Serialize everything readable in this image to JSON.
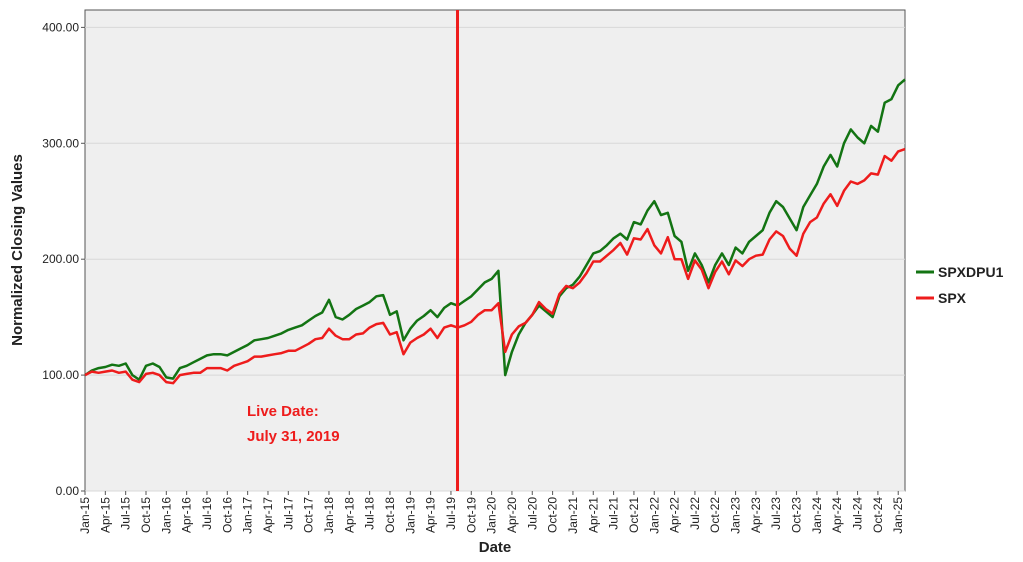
{
  "chart_data": {
    "type": "line",
    "xlabel": "Date",
    "ylabel": "Normalized Closing Values",
    "x": [
      "2015-01",
      "2015-02",
      "2015-03",
      "2015-04",
      "2015-05",
      "2015-06",
      "2015-07",
      "2015-08",
      "2015-09",
      "2015-10",
      "2015-11",
      "2015-12",
      "2016-01",
      "2016-02",
      "2016-03",
      "2016-04",
      "2016-05",
      "2016-06",
      "2016-07",
      "2016-08",
      "2016-09",
      "2016-10",
      "2016-11",
      "2016-12",
      "2017-01",
      "2017-02",
      "2017-03",
      "2017-04",
      "2017-05",
      "2017-06",
      "2017-07",
      "2017-08",
      "2017-09",
      "2017-10",
      "2017-11",
      "2017-12",
      "2018-01",
      "2018-02",
      "2018-03",
      "2018-04",
      "2018-05",
      "2018-06",
      "2018-07",
      "2018-08",
      "2018-09",
      "2018-10",
      "2018-11",
      "2018-12",
      "2019-01",
      "2019-02",
      "2019-03",
      "2019-04",
      "2019-05",
      "2019-06",
      "2019-07",
      "2019-08",
      "2019-09",
      "2019-10",
      "2019-11",
      "2019-12",
      "2020-01",
      "2020-02",
      "2020-03",
      "2020-04",
      "2020-05",
      "2020-06",
      "2020-07",
      "2020-08",
      "2020-09",
      "2020-10",
      "2020-11",
      "2020-12",
      "2021-01",
      "2021-02",
      "2021-03",
      "2021-04",
      "2021-05",
      "2021-06",
      "2021-07",
      "2021-08",
      "2021-09",
      "2021-10",
      "2021-11",
      "2021-12",
      "2022-01",
      "2022-02",
      "2022-03",
      "2022-04",
      "2022-05",
      "2022-06",
      "2022-07",
      "2022-08",
      "2022-09",
      "2022-10",
      "2022-11",
      "2022-12",
      "2023-01",
      "2023-02",
      "2023-03",
      "2023-04",
      "2023-05",
      "2023-06",
      "2023-07",
      "2023-08",
      "2023-09",
      "2023-10",
      "2023-11",
      "2023-12",
      "2024-01",
      "2024-02",
      "2024-03",
      "2024-04",
      "2024-05",
      "2024-06",
      "2024-07",
      "2024-08",
      "2024-09",
      "2024-10",
      "2024-11",
      "2024-12",
      "2025-01",
      "2025-02"
    ],
    "series": [
      {
        "name": "SPXDPU1",
        "color": "#137413",
        "values": [
          100,
          104,
          106,
          107,
          109,
          108,
          110,
          100,
          96,
          108,
          110,
          107,
          98,
          97,
          106,
          108,
          111,
          114,
          117,
          118,
          118,
          117,
          120,
          123,
          126,
          130,
          131,
          132,
          134,
          136,
          139,
          141,
          143,
          147,
          151,
          154,
          165,
          150,
          148,
          152,
          157,
          160,
          163,
          168,
          169,
          152,
          155,
          130,
          140,
          147,
          151,
          156,
          150,
          158,
          162,
          160,
          164,
          168,
          174,
          180,
          183,
          190,
          100,
          120,
          135,
          145,
          152,
          160,
          155,
          150,
          168,
          175,
          178,
          185,
          195,
          205,
          207,
          212,
          218,
          222,
          217,
          232,
          230,
          242,
          250,
          238,
          240,
          220,
          215,
          190,
          205,
          195,
          180,
          195,
          205,
          195,
          210,
          205,
          215,
          220,
          225,
          240,
          250,
          245,
          235,
          225,
          245,
          255,
          265,
          280,
          290,
          280,
          300,
          312,
          305,
          300,
          315,
          310,
          335,
          338,
          350,
          355
        ]
      },
      {
        "name": "SPX",
        "color": "#ee1c1c",
        "values": [
          100,
          103,
          102,
          103,
          104,
          102,
          103,
          96,
          94,
          101,
          102,
          100,
          94,
          93,
          100,
          101,
          102,
          102,
          106,
          106,
          106,
          104,
          108,
          110,
          112,
          116,
          116,
          117,
          118,
          119,
          121,
          121,
          124,
          127,
          131,
          132,
          140,
          134,
          131,
          131,
          135,
          136,
          141,
          144,
          145,
          135,
          137,
          118,
          128,
          132,
          135,
          140,
          132,
          141,
          143,
          141,
          143,
          146,
          152,
          156,
          156,
          162,
          120,
          135,
          142,
          145,
          152,
          163,
          157,
          153,
          170,
          177,
          175,
          180,
          188,
          198,
          198,
          203,
          208,
          214,
          204,
          218,
          217,
          226,
          212,
          205,
          219,
          200,
          200,
          183,
          199,
          191,
          175,
          189,
          198,
          187,
          199,
          194,
          200,
          203,
          204,
          217,
          224,
          220,
          209,
          203,
          222,
          232,
          236,
          248,
          256,
          246,
          259,
          267,
          265,
          268,
          274,
          273,
          289,
          285,
          293,
          295
        ]
      }
    ],
    "xlim": [
      "2015-01",
      "2025-02"
    ],
    "xticks": [
      {
        "value": "2015-01",
        "label": "Jan-15"
      },
      {
        "value": "2015-04",
        "label": "Apr-15"
      },
      {
        "value": "2015-07",
        "label": "Jul-15"
      },
      {
        "value": "2015-10",
        "label": "Oct-15"
      },
      {
        "value": "2016-01",
        "label": "Jan-16"
      },
      {
        "value": "2016-04",
        "label": "Apr-16"
      },
      {
        "value": "2016-07",
        "label": "Jul-16"
      },
      {
        "value": "2016-10",
        "label": "Oct-16"
      },
      {
        "value": "2017-01",
        "label": "Jan-17"
      },
      {
        "value": "2017-04",
        "label": "Apr-17"
      },
      {
        "value": "2017-07",
        "label": "Jul-17"
      },
      {
        "value": "2017-10",
        "label": "Oct-17"
      },
      {
        "value": "2018-01",
        "label": "Jan-18"
      },
      {
        "value": "2018-04",
        "label": "Apr-18"
      },
      {
        "value": "2018-07",
        "label": "Jul-18"
      },
      {
        "value": "2018-10",
        "label": "Oct-18"
      },
      {
        "value": "2019-01",
        "label": "Jan-19"
      },
      {
        "value": "2019-04",
        "label": "Apr-19"
      },
      {
        "value": "2019-07",
        "label": "Jul-19"
      },
      {
        "value": "2019-10",
        "label": "Oct-19"
      },
      {
        "value": "2020-01",
        "label": "Jan-20"
      },
      {
        "value": "2020-04",
        "label": "Apr-20"
      },
      {
        "value": "2020-07",
        "label": "Jul-20"
      },
      {
        "value": "2020-10",
        "label": "Oct-20"
      },
      {
        "value": "2021-01",
        "label": "Jan-21"
      },
      {
        "value": "2021-04",
        "label": "Apr-21"
      },
      {
        "value": "2021-07",
        "label": "Jul-21"
      },
      {
        "value": "2021-10",
        "label": "Oct-21"
      },
      {
        "value": "2022-01",
        "label": "Jan-22"
      },
      {
        "value": "2022-04",
        "label": "Apr-22"
      },
      {
        "value": "2022-07",
        "label": "Jul-22"
      },
      {
        "value": "2022-10",
        "label": "Oct-22"
      },
      {
        "value": "2023-01",
        "label": "Jan-23"
      },
      {
        "value": "2023-04",
        "label": "Apr-23"
      },
      {
        "value": "2023-07",
        "label": "Jul-23"
      },
      {
        "value": "2023-10",
        "label": "Oct-23"
      },
      {
        "value": "2024-01",
        "label": "Jan-24"
      },
      {
        "value": "2024-04",
        "label": "Apr-24"
      },
      {
        "value": "2024-07",
        "label": "Jul-24"
      },
      {
        "value": "2024-10",
        "label": "Oct-24"
      },
      {
        "value": "2025-01",
        "label": "Jan-25"
      }
    ],
    "ylim": [
      0,
      415
    ],
    "yticks": [
      {
        "value": 0,
        "label": "0.00"
      },
      {
        "value": 100,
        "label": "100.00"
      },
      {
        "value": 200,
        "label": "200.00"
      },
      {
        "value": 300,
        "label": "300.00"
      },
      {
        "value": 400,
        "label": "400.00"
      }
    ],
    "grid": true,
    "legend": "right",
    "vline": {
      "x": "2019-07-31",
      "color": "#ee1c1c"
    },
    "annotation": [
      "Live Date:",
      "July 31, 2019"
    ]
  }
}
